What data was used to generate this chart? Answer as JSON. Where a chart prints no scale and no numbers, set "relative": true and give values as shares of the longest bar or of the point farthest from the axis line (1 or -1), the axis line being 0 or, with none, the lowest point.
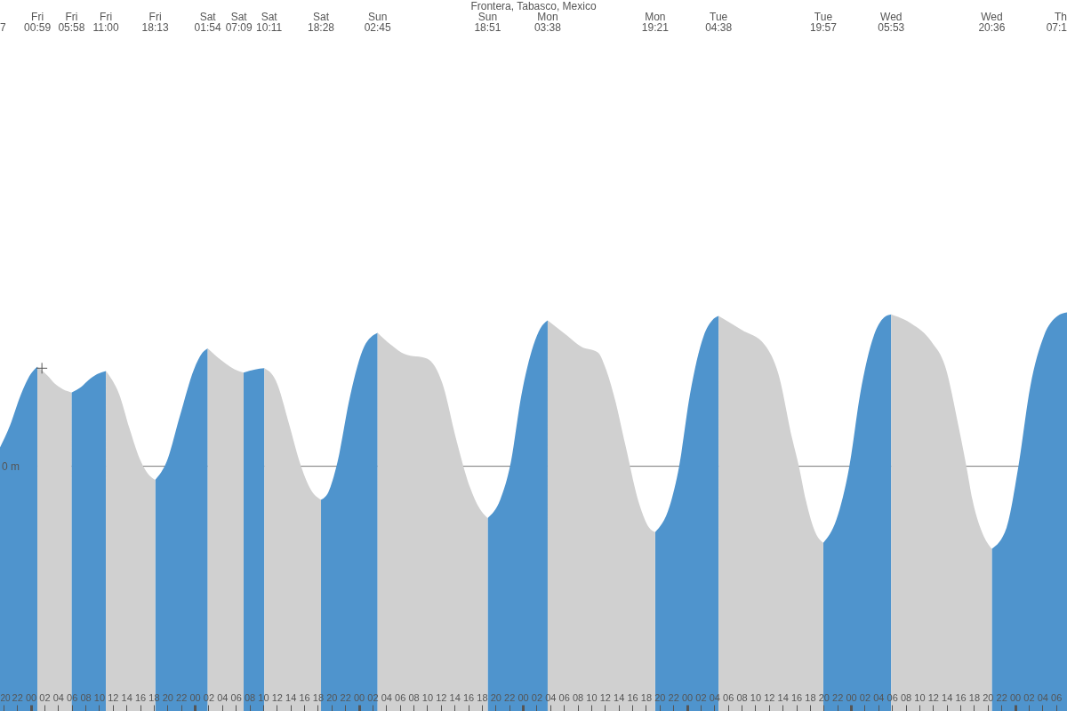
{
  "chart_data": {
    "type": "area",
    "title": "Frontera, Tabasco, Mexico",
    "relative": true,
    "xlim": [
      19.51,
      175.6
    ],
    "xticks": [
      20,
      22,
      {
        "value": 24,
        "label": "00"
      },
      {
        "value": 26,
        "label": "02"
      },
      {
        "value": 28,
        "label": "04"
      },
      {
        "value": 30,
        "label": "06"
      },
      {
        "value": 32,
        "label": "08"
      },
      {
        "value": 34,
        "label": "10"
      },
      {
        "value": 36,
        "label": "12"
      },
      {
        "value": 38,
        "label": "14"
      },
      {
        "value": 40,
        "label": "16"
      },
      {
        "value": 42,
        "label": "18"
      },
      {
        "value": 44,
        "label": "20"
      },
      {
        "value": 46,
        "label": "22"
      },
      {
        "value": 48,
        "label": "00"
      },
      {
        "value": 50,
        "label": "02"
      },
      {
        "value": 52,
        "label": "04"
      },
      {
        "value": 54,
        "label": "06"
      },
      {
        "value": 56,
        "label": "08"
      },
      {
        "value": 58,
        "label": "10"
      },
      {
        "value": 60,
        "label": "12"
      },
      {
        "value": 62,
        "label": "14"
      },
      {
        "value": 64,
        "label": "16"
      },
      {
        "value": 66,
        "label": "18"
      },
      {
        "value": 68,
        "label": "20"
      },
      {
        "value": 70,
        "label": "22"
      },
      {
        "value": 72,
        "label": "00"
      },
      {
        "value": 74,
        "label": "02"
      },
      {
        "value": 76,
        "label": "04"
      },
      {
        "value": 78,
        "label": "06"
      },
      {
        "value": 80,
        "label": "08"
      },
      {
        "value": 82,
        "label": "10"
      },
      {
        "value": 84,
        "label": "12"
      },
      {
        "value": 86,
        "label": "14"
      },
      {
        "value": 88,
        "label": "16"
      },
      {
        "value": 90,
        "label": "18"
      },
      {
        "value": 92,
        "label": "20"
      },
      {
        "value": 94,
        "label": "22"
      },
      {
        "value": 96,
        "label": "00"
      },
      {
        "value": 98,
        "label": "02"
      },
      {
        "value": 100,
        "label": "04"
      },
      {
        "value": 102,
        "label": "06"
      },
      {
        "value": 104,
        "label": "08"
      },
      {
        "value": 106,
        "label": "10"
      },
      {
        "value": 108,
        "label": "12"
      },
      {
        "value": 110,
        "label": "14"
      },
      {
        "value": 112,
        "label": "16"
      },
      {
        "value": 114,
        "label": "18"
      },
      {
        "value": 116,
        "label": "20"
      },
      {
        "value": 118,
        "label": "22"
      },
      {
        "value": 120,
        "label": "00"
      },
      {
        "value": 122,
        "label": "02"
      },
      {
        "value": 124,
        "label": "04"
      },
      {
        "value": 126,
        "label": "06"
      },
      {
        "value": 128,
        "label": "08"
      },
      {
        "value": 130,
        "label": "10"
      },
      {
        "value": 132,
        "label": "12"
      },
      {
        "value": 134,
        "label": "14"
      },
      {
        "value": 136,
        "label": "16"
      },
      {
        "value": 138,
        "label": "18"
      },
      {
        "value": 140,
        "label": "20"
      },
      {
        "value": 142,
        "label": "22"
      },
      {
        "value": 144,
        "label": "00"
      },
      {
        "value": 146,
        "label": "02"
      },
      {
        "value": 148,
        "label": "04"
      },
      {
        "value": 150,
        "label": "06"
      },
      {
        "value": 152,
        "label": "08"
      },
      {
        "value": 154,
        "label": "10"
      },
      {
        "value": 156,
        "label": "12"
      },
      {
        "value": 158,
        "label": "14"
      },
      {
        "value": 160,
        "label": "16"
      },
      {
        "value": 162,
        "label": "18"
      },
      {
        "value": 164,
        "label": "20"
      },
      {
        "value": 166,
        "label": "22"
      },
      {
        "value": 168,
        "label": "00"
      },
      {
        "value": 170,
        "label": "02"
      },
      {
        "value": 172,
        "label": "04"
      },
      {
        "value": 174,
        "label": "06"
      }
    ],
    "series": [
      {
        "color": "#4f94cd",
        "x": [
          19.51,
          21.01,
          22.5,
          23.99,
          24.98,
          27,
          29.97,
          31.45,
          32.45,
          33.7,
          35,
          39,
          42.22,
          43.9,
          45.9,
          47.88,
          49.13,
          49.9,
          52.5,
          55.15,
          56.84,
          58.18,
          62,
          66.47,
          67.55,
          68.79,
          70.79,
          72.78,
          74.75,
          82,
          90.85,
          92.69,
          94.17,
          95.77,
          97.55,
          98.56,
          99.63,
          107,
          115.35,
          117.47,
          118.86,
          120.45,
          122.45,
          123.69,
          124.63,
          132,
          139.95,
          141.86,
          143.76,
          145.34,
          147.33,
          148.83,
          149.88,
          157,
          164.6,
          166.76,
          168.49,
          170.23,
          172.22,
          174.22,
          175.6
        ],
        "values": [
          0.661,
          0.718,
          0.791,
          0.845,
          0.864,
          null,
          0.799,
          0.814,
          0.83,
          0.845,
          0.853,
          null,
          0.58,
          0.626,
          0.745,
          0.857,
          0.899,
          0.91,
          null,
          0.849,
          0.857,
          0.86,
          null,
          0.53,
          0.549,
          0.618,
          0.795,
          0.914,
          0.949,
          null,
          0.484,
          0.53,
          0.618,
          0.791,
          0.918,
          0.96,
          0.98,
          null,
          0.449,
          0.514,
          0.614,
          0.795,
          0.941,
          0.98,
          0.991,
          null,
          0.422,
          0.48,
          0.614,
          0.795,
          0.941,
          0.987,
          0.995,
          null,
          0.407,
          0.46,
          0.614,
          0.814,
          0.941,
          0.991,
          1
        ]
      },
      {
        "color": "#d0d0d0",
        "x": [
          24.98,
          26.48,
          27.47,
          28.72,
          29.97,
          32.5,
          35,
          35.94,
          36.94,
          38.43,
          39.92,
          41.17,
          42.22,
          46,
          49.9,
          51.87,
          53.86,
          55.15,
          56.5,
          58.18,
          59.83,
          61.83,
          63.32,
          65.06,
          66.47,
          70,
          74.75,
          76.76,
          78.75,
          81.99,
          84.22,
          86.21,
          88.2,
          89.7,
          90.85,
          95,
          99.63,
          102.54,
          104.53,
          107,
          108.01,
          109.5,
          110.99,
          112.98,
          114.48,
          115.35,
          120,
          124.63,
          127.92,
          131.4,
          133.39,
          135.39,
          136.38,
          137.38,
          138.87,
          139.95,
          145,
          149.88,
          152.81,
          155.8,
          157.79,
          159.78,
          160.88,
          161.77,
          163.26,
          164.6
        ],
        "values": [
          0.864,
          0.841,
          0.822,
          0.807,
          0.799,
          null,
          0.853,
          0.83,
          0.795,
          0.71,
          0.634,
          0.595,
          0.58,
          null,
          0.91,
          0.88,
          0.857,
          0.849,
          null,
          0.86,
          0.83,
          0.718,
          0.626,
          0.553,
          0.53,
          null,
          0.949,
          0.918,
          0.895,
          0.884,
          0.822,
          0.684,
          0.564,
          0.507,
          0.484,
          null,
          0.98,
          0.941,
          0.914,
          0.899,
          0.864,
          0.78,
          0.668,
          0.522,
          0.46,
          0.449,
          null,
          0.991,
          0.957,
          0.918,
          0.845,
          0.684,
          0.614,
          0.53,
          0.445,
          0.422,
          null,
          0.995,
          0.972,
          0.926,
          0.864,
          0.71,
          0.614,
          0.53,
          0.445,
          0.407
        ]
      },
      {
        "type": "scatter",
        "marker": "cross",
        "color": "#555555",
        "x": [
          25.64
        ],
        "values": [
          0.86
        ]
      }
    ],
    "ref_lines": [
      {
        "axis": "y",
        "value": 0.614,
        "label": "0 m",
        "color": "#777777"
      }
    ],
    "annotations": [
      "7",
      "Fri 00:59",
      "Fri 05:58",
      "Fri 11:00",
      "Fri 18:13",
      "Sat 01:54",
      "Sat 07:09",
      "Sat 10:11",
      "Sat 18:28",
      "Sun 02:45",
      "Sun 18:51",
      "Mon 03:38",
      "Mon 19:21",
      "Tue 04:38",
      "Tue 19:57",
      "Wed 05:53",
      "Wed 20:36",
      "Th 07:1"
    ]
  }
}
